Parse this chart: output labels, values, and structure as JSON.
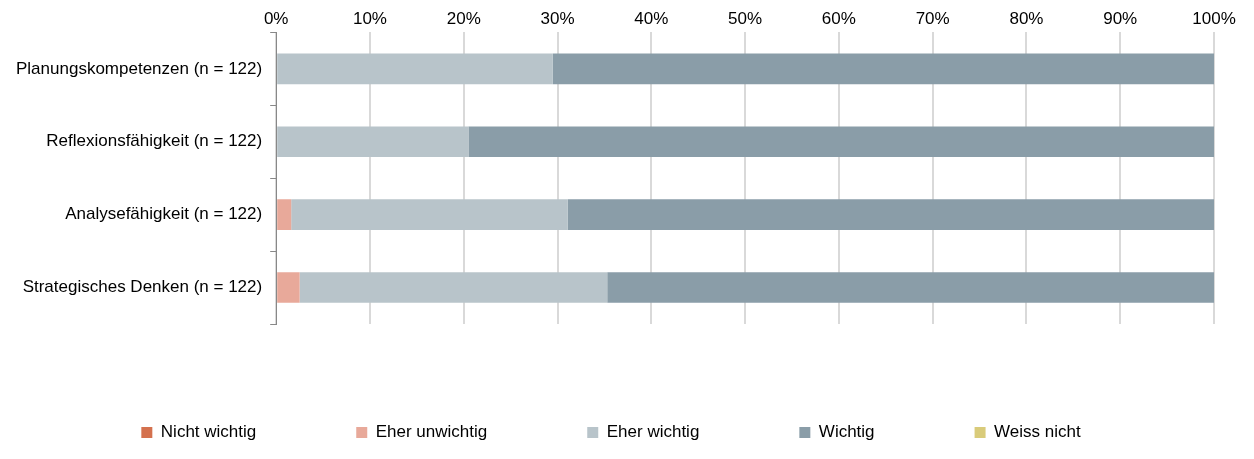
{
  "chart_data": {
    "type": "bar",
    "orientation": "horizontal",
    "stacked": true,
    "categories": [
      "Planungskompetenzen (n = 122)",
      "Reflexionsfähigkeit (n = 122)",
      "Analysefähigkeit (n = 122)",
      "Strategisches Denken (n = 122)"
    ],
    "series": [
      {
        "name": "Nicht wichtig",
        "color": "#d4714e",
        "values": [
          0,
          0,
          0,
          0
        ]
      },
      {
        "name": "Eher unwichtig",
        "color": "#e8a99a",
        "values": [
          0,
          0,
          1.6,
          2.5
        ]
      },
      {
        "name": "Eher wichtig",
        "color": "#b8c4ca",
        "values": [
          29.5,
          20.5,
          29.5,
          32.8
        ]
      },
      {
        "name": "Wichtig",
        "color": "#8a9da8",
        "values": [
          70.5,
          79.5,
          68.9,
          64.7
        ]
      },
      {
        "name": "Weiss nicht",
        "color": "#d9cb7a",
        "values": [
          0,
          0,
          0,
          0
        ]
      }
    ],
    "xlim": [
      0,
      100
    ],
    "xticks": [
      {
        "value": 0,
        "label": "0%"
      },
      {
        "value": 10,
        "label": "10%"
      },
      {
        "value": 20,
        "label": "20%"
      },
      {
        "value": 30,
        "label": "30%"
      },
      {
        "value": 40,
        "label": "40%"
      },
      {
        "value": 50,
        "label": "50%"
      },
      {
        "value": 60,
        "label": "60%"
      },
      {
        "value": 70,
        "label": "70%"
      },
      {
        "value": 80,
        "label": "80%"
      },
      {
        "value": 90,
        "label": "90%"
      },
      {
        "value": 100,
        "label": "100%"
      }
    ],
    "grid": "x",
    "legend": "bottom"
  }
}
